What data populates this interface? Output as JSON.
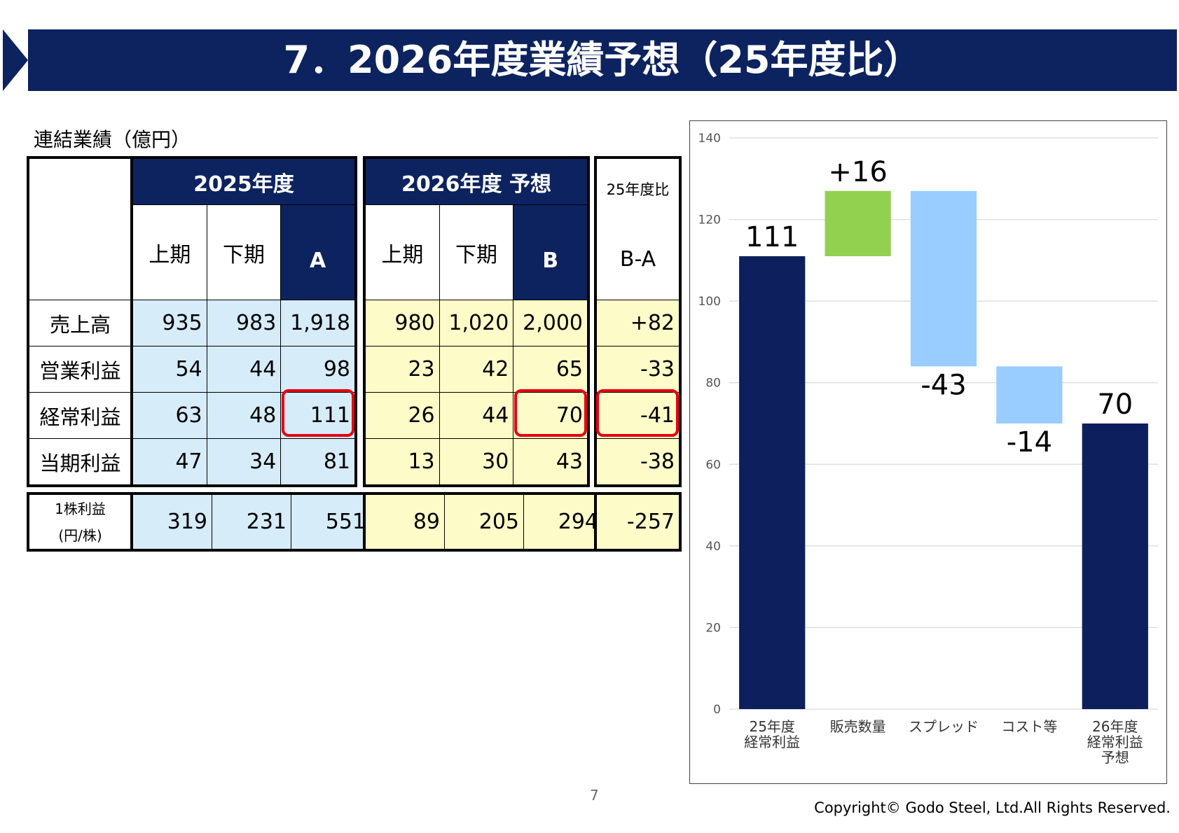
{
  "title": "7．2026年度業績予想（25年度比）",
  "table": {
    "caption": "連結業績（億円）",
    "fy2025_header": "2025年度",
    "fy2026_header": "2026年度 予想",
    "ratio_header": "25年度比",
    "first_half": "上期",
    "second_half": "下期",
    "col_a": "A",
    "col_b": "B",
    "col_ba": "B-A",
    "rows": [
      {
        "label": "売上高",
        "h1_25": "935",
        "h2_25": "983",
        "a": "1,918",
        "h1_26": "980",
        "h2_26": "1,020",
        "b": "2,000",
        "diff": "+82"
      },
      {
        "label": "営業利益",
        "h1_25": "54",
        "h2_25": "44",
        "a": "98",
        "h1_26": "23",
        "h2_26": "42",
        "b": "65",
        "diff": "-33"
      },
      {
        "label": "経常利益",
        "h1_25": "63",
        "h2_25": "48",
        "a": "111",
        "h1_26": "26",
        "h2_26": "44",
        "b": "70",
        "diff": "-41"
      },
      {
        "label": "当期利益",
        "h1_25": "47",
        "h2_25": "34",
        "a": "81",
        "h1_26": "13",
        "h2_26": "30",
        "b": "43",
        "diff": "-38"
      }
    ],
    "eps": {
      "label_line1": "1株利益",
      "label_line2": "(円/株)",
      "h1_25": "319",
      "h2_25": "231",
      "a": "551",
      "h1_26": "89",
      "h2_26": "205",
      "b": "294",
      "diff": "-257"
    }
  },
  "chart_data": {
    "type": "bar",
    "subtype": "waterfall",
    "categories": [
      "25年度\n経常利益",
      "販売数量",
      "スプレッド",
      "コスト等",
      "26年度\n経常利益\n予想"
    ],
    "steps": [
      {
        "label": "111",
        "value": 111,
        "kind": "total",
        "color": "#0d1f5c"
      },
      {
        "label": "+16",
        "value": 16,
        "kind": "increase",
        "color": "#92d050"
      },
      {
        "label": "-43",
        "value": -43,
        "kind": "decrease",
        "color": "#99ccff"
      },
      {
        "label": "-14",
        "value": -14,
        "kind": "decrease",
        "color": "#99ccff"
      },
      {
        "label": "70",
        "value": 70,
        "kind": "total",
        "color": "#0d1f5c"
      }
    ],
    "yticks": [
      "0",
      "20",
      "40",
      "60",
      "80",
      "100",
      "120",
      "140"
    ],
    "ylim": [
      0,
      140
    ],
    "grid": true
  },
  "page_number": "7",
  "copyright": "Copyright© Godo Steel, Ltd.All Rights Reserved."
}
